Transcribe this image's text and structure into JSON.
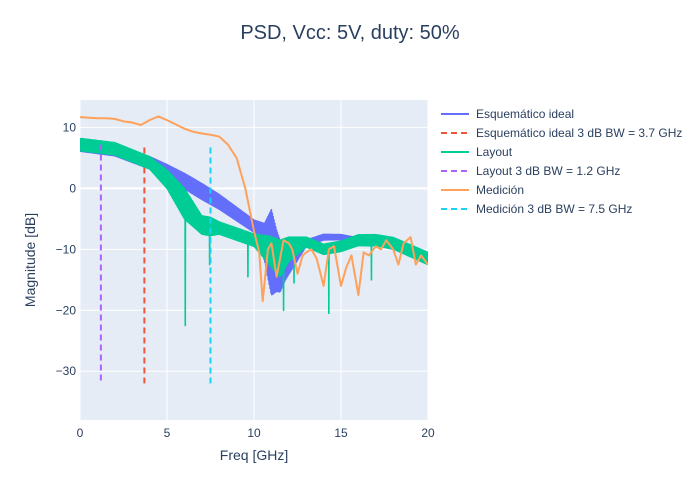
{
  "chart_data": {
    "type": "line",
    "title": "PSD, Vcc: 5V, duty: 50%",
    "xlabel": "Freq [GHz]",
    "ylabel": "Magnitude [dB]",
    "xlim": [
      0,
      20
    ],
    "ylim": [
      -38,
      14.5
    ],
    "xticks": [
      0,
      5,
      10,
      15,
      20
    ],
    "yticks": [
      10,
      0,
      -10,
      -20,
      -30
    ],
    "grid": true,
    "legend_position": "right",
    "plot_background": "#e5ecf6",
    "series": [
      {
        "name": "Esquemático ideal",
        "color": "#636efa",
        "dash": "solid",
        "style": "oscillating",
        "center": [
          [
            0,
            7
          ],
          [
            2,
            6.3
          ],
          [
            4,
            4.2
          ],
          [
            6,
            1.2
          ],
          [
            8,
            -2.2
          ],
          [
            10,
            -6.2
          ],
          [
            11,
            -10.5
          ],
          [
            11.5,
            -12.8
          ],
          [
            12,
            -11.5
          ],
          [
            13,
            -9
          ],
          [
            14,
            -8
          ],
          [
            15,
            -8
          ],
          [
            16,
            -8.5
          ],
          [
            17,
            -9
          ],
          [
            18,
            -9.7
          ],
          [
            20,
            -10.8
          ]
        ],
        "amp": [
          [
            0,
            0.9
          ],
          [
            4,
            1
          ],
          [
            5,
            1.2
          ],
          [
            7,
            1.3
          ],
          [
            9,
            1.1
          ],
          [
            10,
            1
          ],
          [
            10.6,
            3
          ],
          [
            11,
            7
          ],
          [
            11.3,
            5
          ],
          [
            11.8,
            3
          ],
          [
            13,
            0.5
          ],
          [
            20,
            0.2
          ]
        ]
      },
      {
        "name": "Esquemático ideal 3 dB BW = 3.7 GHz",
        "color": "#ef553b",
        "dash": "dash",
        "x": [
          3.7,
          3.7
        ],
        "y": [
          6.7,
          -32
        ]
      },
      {
        "name": "Layout",
        "color": "#00cc96",
        "dash": "solid",
        "style": "oscillating",
        "center": [
          [
            0,
            7.2
          ],
          [
            2,
            6.5
          ],
          [
            4,
            4.2
          ],
          [
            5,
            1.5
          ],
          [
            6,
            -2.5
          ],
          [
            7,
            -6
          ],
          [
            8,
            -6.5
          ],
          [
            9,
            -7.5
          ],
          [
            10,
            -8.5
          ],
          [
            10.8,
            -10
          ],
          [
            11.5,
            -11.5
          ],
          [
            12,
            -10
          ],
          [
            13,
            -8.8
          ],
          [
            14,
            -10
          ],
          [
            15,
            -9.5
          ],
          [
            16,
            -8.5
          ],
          [
            17,
            -8.5
          ],
          [
            18,
            -9
          ],
          [
            20,
            -11.5
          ]
        ],
        "amp": [
          [
            0,
            1
          ],
          [
            4,
            1
          ],
          [
            5,
            1.5
          ],
          [
            5.5,
            2
          ],
          [
            6,
            2.5
          ],
          [
            6.5,
            2
          ],
          [
            7,
            1.5
          ],
          [
            7.5,
            1.5
          ],
          [
            8,
            1
          ],
          [
            10,
            1
          ],
          [
            11,
            2.5
          ],
          [
            11.5,
            3
          ],
          [
            12,
            2
          ],
          [
            13,
            0.8
          ],
          [
            20,
            1
          ]
        ],
        "dips": [
          [
            6.05,
            -22.5
          ],
          [
            7.45,
            -12.5
          ],
          [
            9.65,
            -14.5
          ],
          [
            11.7,
            -20
          ],
          [
            12.3,
            -15.5
          ],
          [
            14.3,
            -20.5
          ],
          [
            16.75,
            -15
          ]
        ]
      },
      {
        "name": "Layout 3 dB BW = 1.2 GHz",
        "color": "#ab63fa",
        "dash": "dash",
        "x": [
          1.2,
          1.2
        ],
        "y": [
          7.2,
          -32
        ]
      },
      {
        "name": "Medición",
        "color": "#ffa15a",
        "dash": "solid",
        "x": [
          0,
          1,
          1.5,
          2,
          2.5,
          3,
          3.5,
          4,
          4.5,
          5,
          5.5,
          6,
          6.5,
          7,
          7.5,
          8,
          8.5,
          9,
          9.5,
          10,
          10.3,
          10.5,
          10.8,
          11,
          11.3,
          11.7,
          12,
          12.2,
          12.5,
          12.8,
          13,
          13.3,
          13.6,
          14,
          14.3,
          14.6,
          15,
          15.3,
          15.6,
          16,
          16.3,
          16.6,
          17,
          17.3,
          17.6,
          18,
          18.3,
          18.6,
          19,
          19.3,
          19.6,
          20
        ],
        "y": [
          11.7,
          11.5,
          11.5,
          11.4,
          11,
          10.8,
          10.4,
          11.2,
          11.8,
          11.2,
          10.5,
          9.8,
          9.3,
          9,
          8.8,
          8.5,
          7.2,
          5,
          0,
          -7,
          -10.5,
          -18.5,
          -10,
          -9,
          -14.5,
          -8.5,
          -9,
          -10,
          -14,
          -11,
          -10.5,
          -10,
          -11.5,
          -16,
          -10,
          -9.5,
          -16,
          -13,
          -11,
          -17.5,
          -10.5,
          -11,
          -9.5,
          -10,
          -8.5,
          -10,
          -12.5,
          -9,
          -8,
          -12.5,
          -11,
          -12.5
        ]
      },
      {
        "name": "Medición 3 dB BW = 7.5 GHz",
        "color": "#19d3f3",
        "dash": "dash",
        "x": [
          7.5,
          7.5
        ],
        "y": [
          6.7,
          -32
        ]
      }
    ]
  }
}
